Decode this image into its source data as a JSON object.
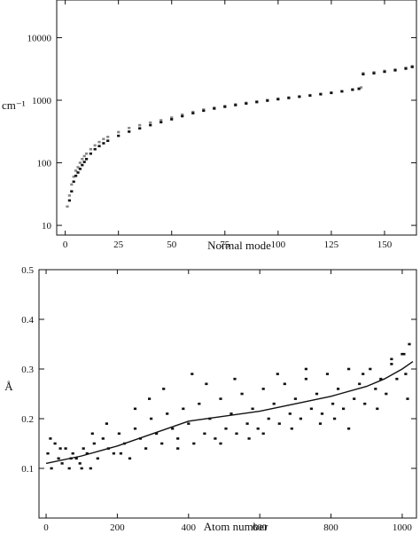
{
  "chart_data": [
    {
      "type": "scatter",
      "xlabel": "Normal mode",
      "ylabel": "cm⁻¹",
      "xlim": [
        -4,
        165
      ],
      "ylim": [
        7,
        40000
      ],
      "yscale": "log",
      "grid": false,
      "xticks": [
        0,
        25,
        50,
        75,
        100,
        125,
        150
      ],
      "yticks": [
        10,
        100,
        1000,
        10000
      ],
      "ytick_labels": [
        "10",
        "100",
        "1000",
        "10000"
      ],
      "series": [
        {
          "name": "",
          "color": "#888888",
          "x": [
            1,
            2,
            3,
            4,
            5,
            6,
            7,
            8,
            9,
            10,
            12,
            14,
            16,
            18,
            20,
            25,
            30,
            35,
            40,
            45,
            50,
            55,
            60,
            65,
            70,
            75,
            80,
            85,
            90,
            95,
            100,
            105,
            110,
            115,
            120,
            125,
            130,
            135,
            138,
            139,
            140,
            145,
            150,
            155,
            160,
            163
          ],
          "values": [
            20,
            30,
            45,
            60,
            75,
            85,
            100,
            115,
            128,
            140,
            165,
            190,
            215,
            240,
            260,
            310,
            360,
            400,
            440,
            480,
            530,
            590,
            650,
            710,
            760,
            810,
            860,
            910,
            960,
            1010,
            1060,
            1110,
            1160,
            1210,
            1270,
            1330,
            1400,
            1500,
            1550,
            1600,
            2700,
            2800,
            2950,
            3100,
            3300,
            3500
          ]
        },
        {
          "name": "",
          "color": "#111111",
          "x": [
            2,
            3,
            4,
            5,
            6,
            7,
            8,
            9,
            10,
            12,
            14,
            16,
            18,
            20,
            25,
            30,
            35,
            40,
            45,
            50,
            55,
            60,
            65,
            70,
            75,
            80,
            85,
            90,
            95,
            100,
            105,
            110,
            115,
            120,
            125,
            130,
            135,
            138,
            140,
            145,
            150,
            155,
            160,
            163
          ],
          "values": [
            25,
            35,
            50,
            62,
            70,
            80,
            92,
            103,
            115,
            140,
            165,
            185,
            205,
            225,
            270,
            315,
            355,
            400,
            445,
            495,
            555,
            620,
            680,
            735,
            785,
            835,
            885,
            935,
            985,
            1035,
            1085,
            1135,
            1185,
            1245,
            1305,
            1380,
            1470,
            1520,
            2600,
            2700,
            2850,
            3000,
            3200,
            3400
          ]
        }
      ]
    },
    {
      "type": "scatter",
      "xlabel": "Atom number",
      "ylabel": "Å",
      "xlim": [
        -20,
        1040
      ],
      "ylim": [
        0.0,
        0.5
      ],
      "grid": false,
      "xticks": [
        0,
        200,
        400,
        600,
        800,
        1000
      ],
      "yticks": [
        0.1,
        0.2,
        0.3,
        0.4,
        0.5
      ],
      "ytick_labels": [
        "0.1",
        "0.2",
        "0.3",
        "0.4",
        "0.5"
      ],
      "series": [
        {
          "name": "",
          "color": "#111111",
          "x": [
            5,
            15,
            25,
            35,
            45,
            55,
            65,
            75,
            85,
            95,
            105,
            115,
            125,
            135,
            145,
            160,
            175,
            190,
            205,
            220,
            235,
            250,
            265,
            280,
            295,
            310,
            325,
            340,
            355,
            370,
            385,
            400,
            415,
            430,
            445,
            460,
            475,
            490,
            505,
            520,
            535,
            550,
            565,
            580,
            595,
            610,
            625,
            640,
            655,
            670,
            685,
            700,
            715,
            730,
            745,
            760,
            775,
            790,
            805,
            820,
            835,
            850,
            865,
            880,
            895,
            910,
            925,
            940,
            955,
            970,
            985,
            1000,
            1010,
            1020,
            12,
            40,
            70,
            100,
            130,
            170,
            210,
            250,
            290,
            330,
            370,
            410,
            450,
            490,
            530,
            570,
            610,
            650,
            690,
            730,
            770,
            810,
            850,
            890,
            930,
            970,
            1005,
            1015
          ],
          "values": [
            0.13,
            0.1,
            0.15,
            0.12,
            0.11,
            0.14,
            0.1,
            0.13,
            0.12,
            0.11,
            0.14,
            0.13,
            0.1,
            0.15,
            0.12,
            0.16,
            0.14,
            0.13,
            0.17,
            0.15,
            0.12,
            0.18,
            0.16,
            0.14,
            0.2,
            0.17,
            0.15,
            0.21,
            0.18,
            0.16,
            0.22,
            0.19,
            0.15,
            0.23,
            0.17,
            0.2,
            0.16,
            0.24,
            0.18,
            0.21,
            0.17,
            0.25,
            0.19,
            0.22,
            0.18,
            0.26,
            0.2,
            0.23,
            0.19,
            0.27,
            0.21,
            0.24,
            0.2,
            0.28,
            0.22,
            0.25,
            0.21,
            0.29,
            0.23,
            0.26,
            0.22,
            0.3,
            0.24,
            0.27,
            0.23,
            0.3,
            0.26,
            0.28,
            0.25,
            0.32,
            0.28,
            0.33,
            0.29,
            0.35,
            0.16,
            0.14,
            0.12,
            0.1,
            0.17,
            0.19,
            0.13,
            0.22,
            0.24,
            0.26,
            0.14,
            0.29,
            0.27,
            0.15,
            0.28,
            0.16,
            0.17,
            0.29,
            0.18,
            0.3,
            0.19,
            0.2,
            0.18,
            0.29,
            0.22,
            0.31,
            0.33,
            0.24
          ]
        },
        {
          "name": "",
          "type": "line",
          "color": "#111111",
          "x": [
            0,
            100,
            200,
            300,
            400,
            500,
            600,
            700,
            800,
            900,
            950,
            1000,
            1030
          ],
          "values": [
            0.11,
            0.125,
            0.145,
            0.17,
            0.195,
            0.205,
            0.215,
            0.23,
            0.245,
            0.265,
            0.28,
            0.3,
            0.315
          ]
        }
      ]
    }
  ]
}
